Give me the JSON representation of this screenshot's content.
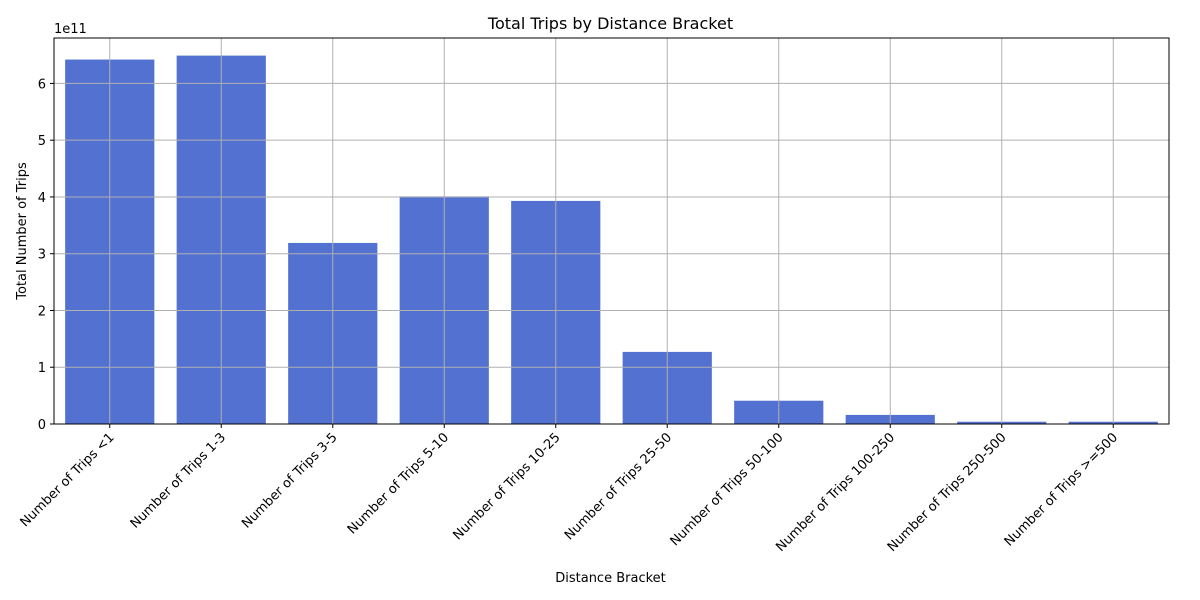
{
  "chart_data": {
    "type": "bar",
    "title": "Total Trips by Distance Bracket",
    "xlabel": "Distance Bracket",
    "ylabel": "Total Number of Trips",
    "y_multiplier_label": "1e11",
    "ylim": [
      0,
      6.8
    ],
    "y_ticks": [
      0,
      1,
      2,
      3,
      4,
      5,
      6
    ],
    "grid": true,
    "bar_color": "#5271d1",
    "categories": [
      "Number of Trips <1",
      "Number of Trips 1-3",
      "Number of Trips 3-5",
      "Number of Trips 5-10",
      "Number of Trips 10-25",
      "Number of Trips 25-50",
      "Number of Trips 50-100",
      "Number of Trips 100-250",
      "Number of Trips 250-500",
      "Number of Trips >=500"
    ],
    "values": [
      6.42,
      6.49,
      3.19,
      4.01,
      3.93,
      1.27,
      0.41,
      0.16,
      0.04,
      0.04
    ]
  }
}
